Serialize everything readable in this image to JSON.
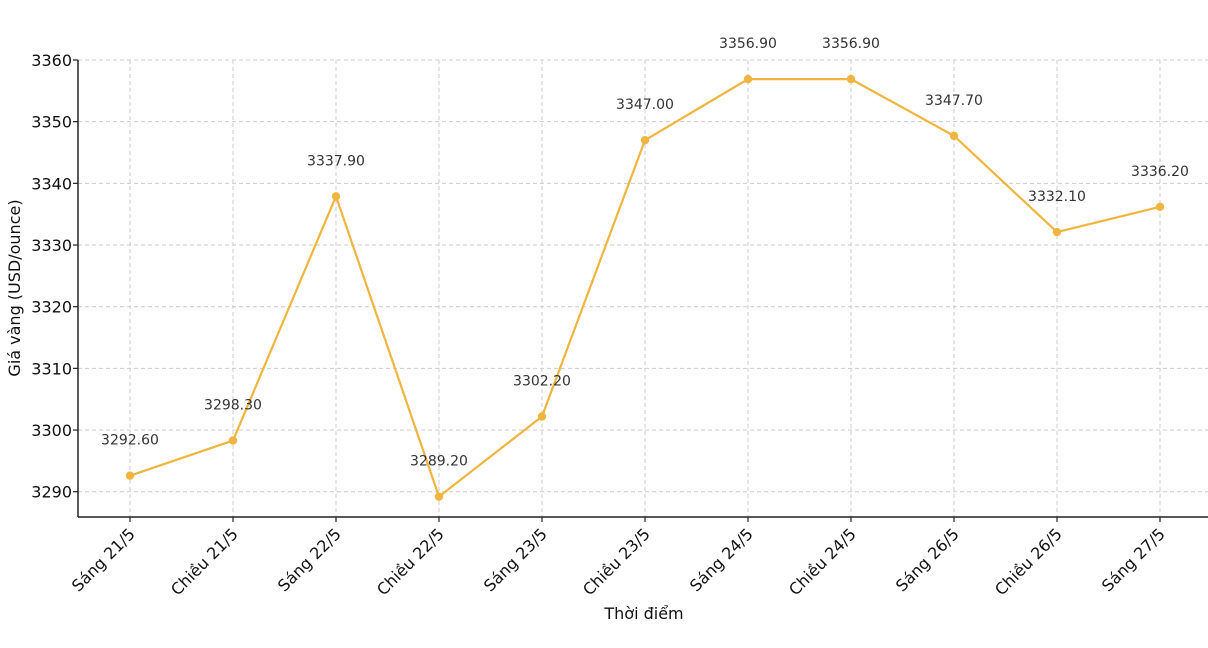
{
  "chart_data": {
    "type": "line",
    "title": "",
    "xlabel": "Thời điểm",
    "ylabel": "Giá vàng (USD/ounce)",
    "categories": [
      "Sáng 21/5",
      "Chiều 21/5",
      "Sáng 22/5",
      "Chiều 22/5",
      "Sáng 23/5",
      "Chiều 23/5",
      "Sáng 24/5",
      "Chiều 24/5",
      "Sáng 26/5",
      "Chiều 26/5",
      "Sáng 27/5"
    ],
    "series": [
      {
        "values": [
          3292.6,
          3298.3,
          3337.9,
          3289.2,
          3302.2,
          3347.0,
          3356.9,
          3356.9,
          3347.7,
          3332.1,
          3336.2
        ],
        "labels": [
          "3292.60",
          "3298.30",
          "3337.90",
          "3289.20",
          "3302.20",
          "3347.00",
          "3356.90",
          "3356.90",
          "3347.70",
          "3332.10",
          "3336.20"
        ],
        "color": "#f0b540"
      }
    ],
    "yticks": [
      3290,
      3300,
      3310,
      3320,
      3330,
      3340,
      3350,
      3360
    ],
    "ytick_labels": [
      "3290",
      "3300",
      "3310",
      "3320",
      "3330",
      "3340",
      "3350",
      "3360"
    ],
    "ylim": [
      3285.9,
      3360.0
    ],
    "grid": true,
    "grid_style": "dashed",
    "legend": "none"
  }
}
